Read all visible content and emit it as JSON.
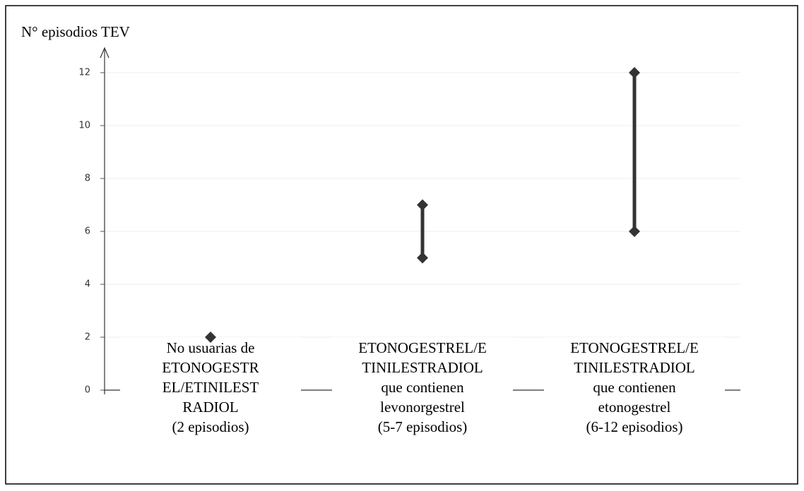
{
  "chart_data": {
    "type": "range",
    "y_label": "N° episodios TEV",
    "categories": [
      [
        "No usuarias de",
        "ETONOGESTR",
        "EL/ETINILEST",
        "RADIOL",
        "(2 episodios)"
      ],
      [
        "ETONOGESTREL/E",
        "TINILESTRADIOL",
        "que contienen",
        "levonorgestrel",
        "(5-7 episodios)"
      ],
      [
        "ETONOGESTREL/E",
        "TINILESTRADIOL",
        "que contienen",
        "etonogestrel",
        "(6-12 episodios)"
      ]
    ],
    "low": [
      2,
      5,
      6
    ],
    "high": [
      null,
      7,
      12
    ],
    "color": "#333333",
    "ylim": [
      0,
      12
    ],
    "yticks": [
      0,
      2,
      4,
      6,
      8,
      10,
      12
    ],
    "grid": true
  }
}
